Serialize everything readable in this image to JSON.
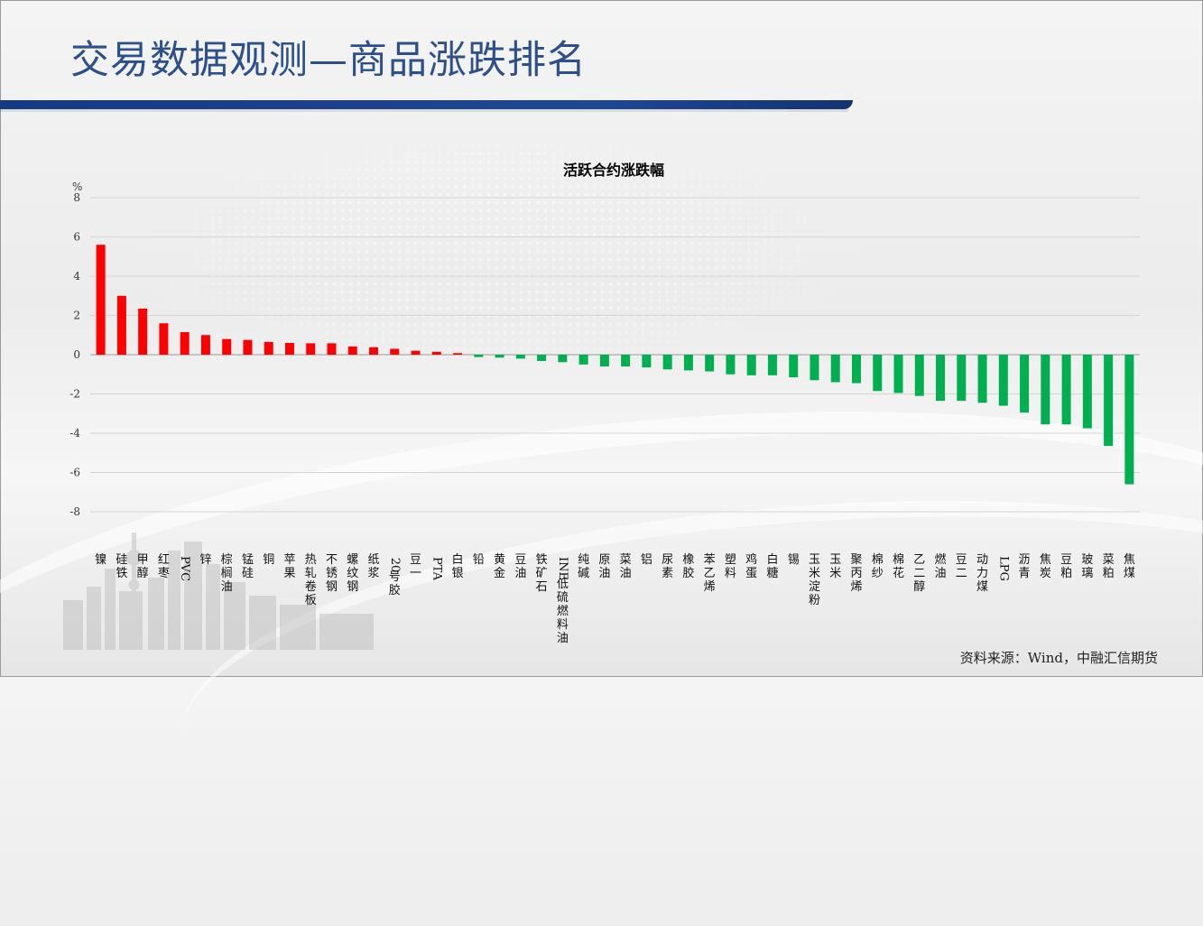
{
  "header": {
    "title": "交易数据观测—商品涨跌排名"
  },
  "footer": {
    "source": "资料来源：Wind，中融汇信期货"
  },
  "colors": {
    "up": "#ff0000",
    "down": "#00b050",
    "title": "#2d4f8a",
    "bar": "#1a3f8c"
  },
  "chart_data": {
    "type": "bar",
    "title": "活跃合约涨跌幅",
    "ylabel": "%",
    "xlabel": "",
    "ylim": [
      -8,
      8
    ],
    "yticks": [
      8,
      6,
      4,
      2,
      0,
      -2,
      -4,
      -6,
      -8
    ],
    "grid": true,
    "legend": "none",
    "categories": [
      "镍",
      "硅铁",
      "甲醇",
      "红枣",
      "PVC",
      "锌",
      "棕榈油",
      "锰硅",
      "铜",
      "苹果",
      "热轧卷板",
      "不锈钢",
      "螺纹钢",
      "纸浆",
      "20号胶",
      "豆一",
      "PTA",
      "白银",
      "铅",
      "黄金",
      "豆油",
      "铁矿石",
      "INE低硫燃料油",
      "纯碱",
      "原油",
      "菜油",
      "铝",
      "尿素",
      "橡胶",
      "苯乙烯",
      "塑料",
      "鸡蛋",
      "白糖",
      "锡",
      "玉米淀粉",
      "玉米",
      "聚丙烯",
      "棉纱",
      "棉花",
      "乙二醇",
      "燃油",
      "豆二",
      "动力煤",
      "LPG",
      "沥青",
      "焦炭",
      "豆粕",
      "玻璃",
      "菜粕",
      "焦煤"
    ],
    "values": [
      5.6,
      3.0,
      2.35,
      1.6,
      1.15,
      1.0,
      0.8,
      0.75,
      0.65,
      0.6,
      0.58,
      0.58,
      0.42,
      0.38,
      0.3,
      0.2,
      0.15,
      0.08,
      -0.12,
      -0.15,
      -0.2,
      -0.32,
      -0.38,
      -0.5,
      -0.6,
      -0.6,
      -0.65,
      -0.75,
      -0.8,
      -0.85,
      -1.0,
      -1.05,
      -1.05,
      -1.15,
      -1.3,
      -1.4,
      -1.45,
      -1.85,
      -1.95,
      -2.1,
      -2.35,
      -2.35,
      -2.45,
      -2.6,
      -2.95,
      -3.55,
      -3.55,
      -3.75,
      -4.65,
      -6.6
    ]
  }
}
